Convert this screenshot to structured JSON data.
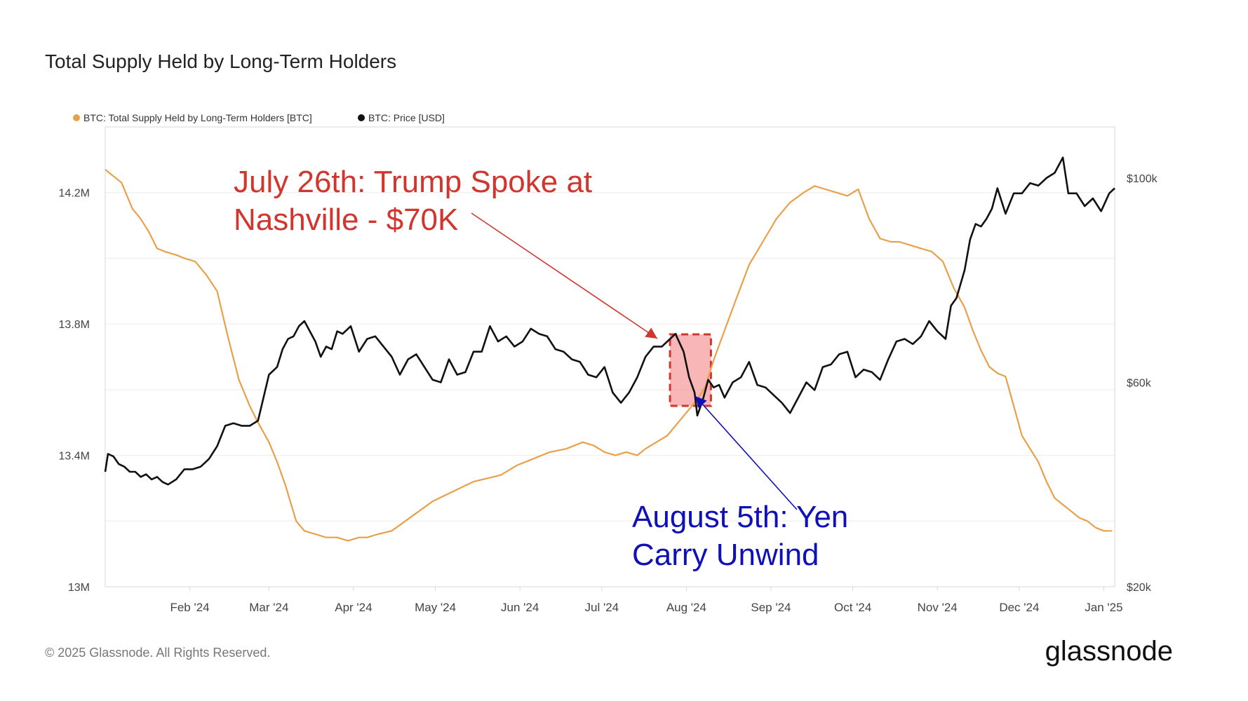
{
  "chart_data": {
    "type": "line",
    "title": "Total Supply Held by Long-Term Holders",
    "legend": [
      {
        "name": "BTC: Total Supply Held by Long-Term Holders [BTC]",
        "color": "#e8a04a"
      },
      {
        "name": "BTC: Price [USD]",
        "color": "#111111"
      }
    ],
    "legend_placement": "top-left",
    "x_range": [
      "2024-01-01",
      "2025-01-05"
    ],
    "x_ticks": [
      {
        "date": "2024-02-01",
        "label": "Feb '24"
      },
      {
        "date": "2024-03-01",
        "label": "Mar '24"
      },
      {
        "date": "2024-04-01",
        "label": "Apr '24"
      },
      {
        "date": "2024-05-01",
        "label": "May '24"
      },
      {
        "date": "2024-06-01",
        "label": "Jun '24"
      },
      {
        "date": "2024-07-01",
        "label": "Jul '24"
      },
      {
        "date": "2024-08-01",
        "label": "Aug '24"
      },
      {
        "date": "2024-09-01",
        "label": "Sep '24"
      },
      {
        "date": "2024-10-01",
        "label": "Oct '24"
      },
      {
        "date": "2024-11-01",
        "label": "Nov '24"
      },
      {
        "date": "2024-12-01",
        "label": "Dec '24"
      },
      {
        "date": "2025-01-01",
        "label": "Jan '25"
      }
    ],
    "y_left": {
      "range": [
        13000000,
        14400000
      ],
      "ticks": [
        {
          "value": 13000000,
          "label": "13M"
        },
        {
          "value": 13400000,
          "label": "13.4M"
        },
        {
          "value": 13800000,
          "label": "13.8M"
        },
        {
          "value": 14200000,
          "label": "14.2M"
        }
      ]
    },
    "y_right": {
      "range": [
        20000,
        110000
      ],
      "ticks": [
        {
          "value": 20000,
          "label": "$20k"
        },
        {
          "value": 60000,
          "label": "$60k"
        },
        {
          "value": 100000,
          "label": "$100k"
        }
      ]
    },
    "grid": true,
    "series": [
      {
        "name": "BTC: Total Supply Held by Long-Term Holders [BTC]",
        "axis": "left",
        "color": "#e8a04a",
        "x": [
          "2024-01-01",
          "2024-01-04",
          "2024-01-07",
          "2024-01-11",
          "2024-01-14",
          "2024-01-17",
          "2024-01-20",
          "2024-01-23",
          "2024-01-27",
          "2024-01-30",
          "2024-02-03",
          "2024-02-07",
          "2024-02-11",
          "2024-02-15",
          "2024-02-19",
          "2024-02-23",
          "2024-02-26",
          "2024-03-01",
          "2024-03-04",
          "2024-03-07",
          "2024-03-11",
          "2024-03-14",
          "2024-03-18",
          "2024-03-22",
          "2024-03-26",
          "2024-03-30",
          "2024-04-03",
          "2024-04-06",
          "2024-04-10",
          "2024-04-15",
          "2024-04-20",
          "2024-04-25",
          "2024-04-30",
          "2024-05-05",
          "2024-05-10",
          "2024-05-15",
          "2024-05-20",
          "2024-05-25",
          "2024-05-31",
          "2024-06-06",
          "2024-06-12",
          "2024-06-18",
          "2024-06-24",
          "2024-06-28",
          "2024-07-02",
          "2024-07-06",
          "2024-07-10",
          "2024-07-14",
          "2024-07-17",
          "2024-07-21",
          "2024-07-25",
          "2024-07-29",
          "2024-08-01",
          "2024-08-03",
          "2024-08-05",
          "2024-08-08",
          "2024-08-11",
          "2024-08-15",
          "2024-08-19",
          "2024-08-24",
          "2024-08-29",
          "2024-09-03",
          "2024-09-08",
          "2024-09-13",
          "2024-09-17",
          "2024-09-21",
          "2024-09-25",
          "2024-09-29",
          "2024-10-03",
          "2024-10-07",
          "2024-10-11",
          "2024-10-15",
          "2024-10-18",
          "2024-10-22",
          "2024-10-26",
          "2024-10-30",
          "2024-11-03",
          "2024-11-07",
          "2024-11-11",
          "2024-11-14",
          "2024-11-17",
          "2024-11-20",
          "2024-11-23",
          "2024-11-26",
          "2024-11-29",
          "2024-12-02",
          "2024-12-05",
          "2024-12-08",
          "2024-12-11",
          "2024-12-14",
          "2024-12-17",
          "2024-12-20",
          "2024-12-23",
          "2024-12-26",
          "2024-12-29",
          "2025-01-01",
          "2025-01-04"
        ],
        "values": [
          14270000,
          14250000,
          14230000,
          14150000,
          14120000,
          14080000,
          14030000,
          14020000,
          14010000,
          14000000,
          13990000,
          13950000,
          13900000,
          13760000,
          13630000,
          13550000,
          13500000,
          13440000,
          13380000,
          13310000,
          13200000,
          13170000,
          13160000,
          13150000,
          13150000,
          13140000,
          13150000,
          13150000,
          13160000,
          13170000,
          13200000,
          13230000,
          13260000,
          13280000,
          13300000,
          13320000,
          13330000,
          13340000,
          13370000,
          13390000,
          13410000,
          13420000,
          13440000,
          13430000,
          13410000,
          13400000,
          13410000,
          13400000,
          13420000,
          13440000,
          13460000,
          13500000,
          13530000,
          13550000,
          13570000,
          13610000,
          13690000,
          13780000,
          13870000,
          13980000,
          14050000,
          14120000,
          14170000,
          14200000,
          14220000,
          14210000,
          14200000,
          14190000,
          14210000,
          14120000,
          14060000,
          14050000,
          14050000,
          14040000,
          14030000,
          14020000,
          13990000,
          13910000,
          13850000,
          13780000,
          13720000,
          13670000,
          13650000,
          13640000,
          13550000,
          13460000,
          13420000,
          13380000,
          13320000,
          13270000,
          13250000,
          13230000,
          13210000,
          13200000,
          13180000,
          13170000,
          13170000
        ]
      },
      {
        "name": "BTC: Price [USD]",
        "axis": "right",
        "color": "#111111",
        "x": [
          "2024-01-01",
          "2024-01-02",
          "2024-01-04",
          "2024-01-06",
          "2024-01-08",
          "2024-01-10",
          "2024-01-12",
          "2024-01-14",
          "2024-01-16",
          "2024-01-18",
          "2024-01-20",
          "2024-01-22",
          "2024-01-24",
          "2024-01-27",
          "2024-01-30",
          "2024-02-02",
          "2024-02-05",
          "2024-02-08",
          "2024-02-11",
          "2024-02-14",
          "2024-02-17",
          "2024-02-20",
          "2024-02-23",
          "2024-02-26",
          "2024-02-28",
          "2024-03-01",
          "2024-03-04",
          "2024-03-06",
          "2024-03-08",
          "2024-03-10",
          "2024-03-12",
          "2024-03-14",
          "2024-03-16",
          "2024-03-18",
          "2024-03-20",
          "2024-03-22",
          "2024-03-24",
          "2024-03-26",
          "2024-03-28",
          "2024-03-31",
          "2024-04-03",
          "2024-04-06",
          "2024-04-09",
          "2024-04-12",
          "2024-04-15",
          "2024-04-18",
          "2024-04-21",
          "2024-04-24",
          "2024-04-27",
          "2024-04-30",
          "2024-05-03",
          "2024-05-06",
          "2024-05-09",
          "2024-05-12",
          "2024-05-15",
          "2024-05-18",
          "2024-05-21",
          "2024-05-24",
          "2024-05-27",
          "2024-05-30",
          "2024-06-02",
          "2024-06-05",
          "2024-06-08",
          "2024-06-11",
          "2024-06-14",
          "2024-06-17",
          "2024-06-20",
          "2024-06-23",
          "2024-06-26",
          "2024-06-29",
          "2024-07-02",
          "2024-07-05",
          "2024-07-08",
          "2024-07-11",
          "2024-07-14",
          "2024-07-17",
          "2024-07-20",
          "2024-07-23",
          "2024-07-26",
          "2024-07-28",
          "2024-07-31",
          "2024-08-02",
          "2024-08-04",
          "2024-08-05",
          "2024-08-07",
          "2024-08-09",
          "2024-08-11",
          "2024-08-13",
          "2024-08-15",
          "2024-08-18",
          "2024-08-21",
          "2024-08-24",
          "2024-08-27",
          "2024-08-30",
          "2024-09-02",
          "2024-09-05",
          "2024-09-08",
          "2024-09-11",
          "2024-09-14",
          "2024-09-17",
          "2024-09-20",
          "2024-09-23",
          "2024-09-26",
          "2024-09-29",
          "2024-10-02",
          "2024-10-05",
          "2024-10-08",
          "2024-10-11",
          "2024-10-14",
          "2024-10-17",
          "2024-10-20",
          "2024-10-23",
          "2024-10-26",
          "2024-10-29",
          "2024-11-01",
          "2024-11-04",
          "2024-11-06",
          "2024-11-08",
          "2024-11-11",
          "2024-11-13",
          "2024-11-15",
          "2024-11-17",
          "2024-11-19",
          "2024-11-21",
          "2024-11-23",
          "2024-11-26",
          "2024-11-29",
          "2024-12-02",
          "2024-12-05",
          "2024-12-08",
          "2024-12-11",
          "2024-12-14",
          "2024-12-17",
          "2024-12-19",
          "2024-12-22",
          "2024-12-25",
          "2024-12-28",
          "2024-12-31",
          "2025-01-03",
          "2025-01-05"
        ],
        "values": [
          42500,
          46000,
          45500,
          44000,
          43500,
          42500,
          42500,
          41500,
          42000,
          41000,
          41500,
          40500,
          40000,
          41000,
          43000,
          43000,
          43500,
          45000,
          47500,
          51500,
          52000,
          51500,
          51500,
          52500,
          57000,
          61500,
          63000,
          66500,
          68500,
          69000,
          71000,
          72000,
          70000,
          68000,
          65000,
          67000,
          66500,
          70000,
          69500,
          71000,
          66000,
          68500,
          69000,
          67000,
          65000,
          61500,
          64500,
          65500,
          63000,
          60500,
          60000,
          64500,
          61500,
          62000,
          66000,
          66000,
          71000,
          68000,
          69000,
          67000,
          68000,
          70500,
          69500,
          69000,
          66500,
          66000,
          64500,
          64000,
          61500,
          61000,
          63000,
          58000,
          56000,
          58000,
          61000,
          65000,
          67000,
          67000,
          68500,
          69500,
          66000,
          61000,
          58000,
          53500,
          56500,
          60500,
          59000,
          59500,
          57000,
          60000,
          61000,
          64000,
          59500,
          59000,
          57500,
          56000,
          54000,
          57000,
          60000,
          58500,
          63000,
          63500,
          65500,
          66000,
          61000,
          62500,
          62000,
          60500,
          64500,
          68000,
          68500,
          67500,
          69000,
          72000,
          70000,
          68500,
          75000,
          76500,
          82000,
          88000,
          91000,
          90500,
          92000,
          94000,
          98000,
          93000,
          97000,
          97000,
          99000,
          98500,
          100000,
          101000,
          104000,
          97000,
          97000,
          94500,
          96000,
          93500,
          97000,
          98000
        ]
      }
    ],
    "annotations": [
      {
        "text": "July 26th: Trump Spoke at Nashville - $70K",
        "lines": [
          "July 26th: Trump Spoke at",
          "Nashville - $70K"
        ],
        "color": "#d0362e",
        "points_to": "2024-07-26"
      },
      {
        "text": "August 5th: Yen Carry Unwind",
        "lines": [
          "August 5th: Yen",
          "Carry Unwind"
        ],
        "color": "#1010b8",
        "points_to": "2024-08-05"
      }
    ],
    "highlight_region": {
      "x_from": "2024-07-26",
      "x_to": "2024-08-10",
      "color": "#f27a7a"
    }
  },
  "footer": {
    "copyright": "© 2025 Glassnode. All Rights Reserved.",
    "brand": "glassnode"
  }
}
